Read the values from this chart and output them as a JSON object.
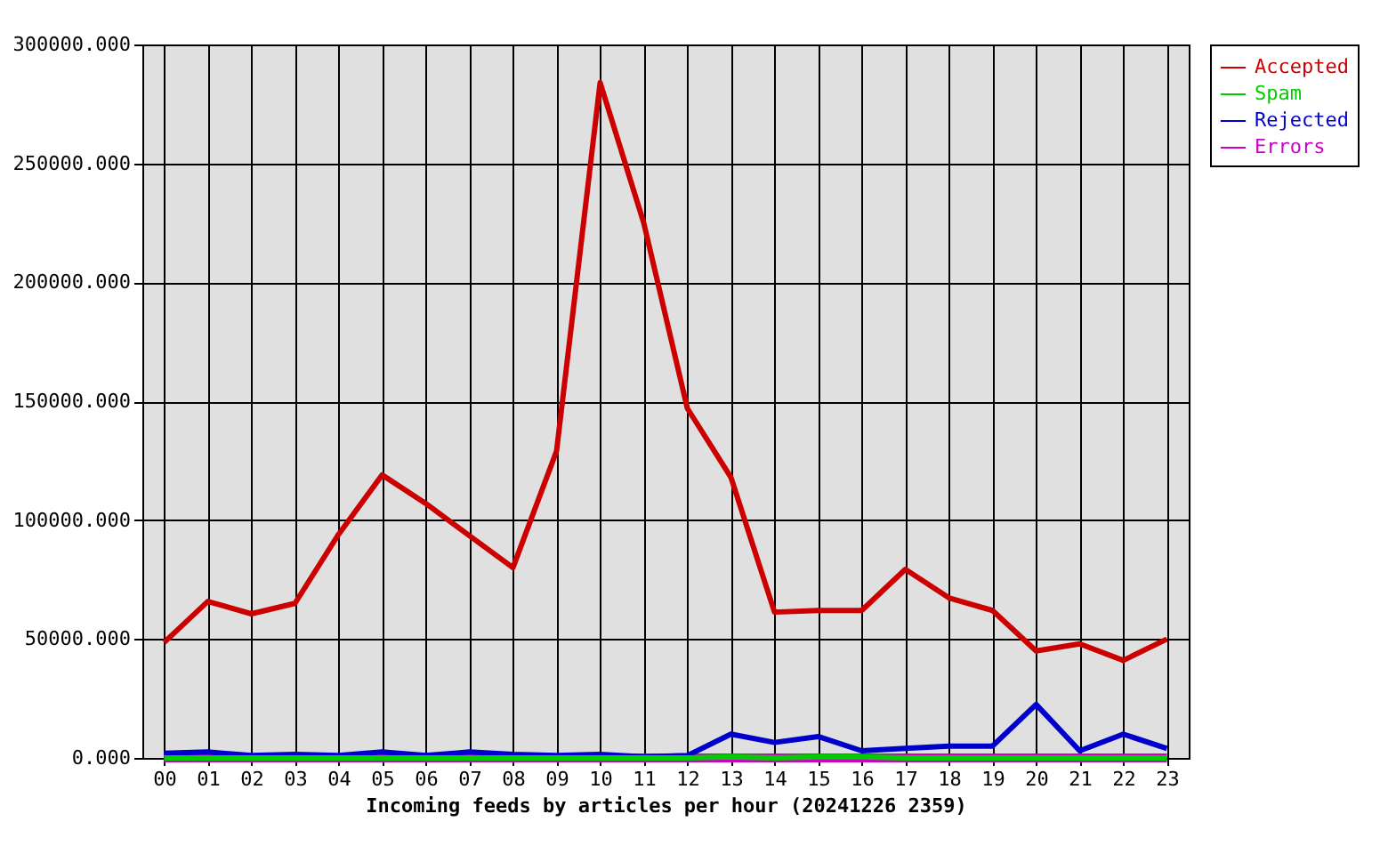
{
  "chart_data": {
    "type": "line",
    "xlabel": "Incoming feeds by articles per hour (20241226 2359)",
    "categories": [
      "00",
      "01",
      "02",
      "03",
      "04",
      "05",
      "06",
      "07",
      "08",
      "09",
      "10",
      "11",
      "12",
      "13",
      "14",
      "15",
      "16",
      "17",
      "18",
      "19",
      "20",
      "21",
      "22",
      "23"
    ],
    "series": [
      {
        "name": "Accepted",
        "color": "#cc0000",
        "values": [
          48600,
          65800,
          60600,
          65000,
          94000,
          119000,
          107000,
          93500,
          80000,
          129000,
          284000,
          225000,
          147000,
          118000,
          61300,
          62000,
          62000,
          79300,
          67300,
          62000,
          45000,
          48000,
          41000,
          50000
        ]
      },
      {
        "name": "Spam",
        "color": "#00cc00",
        "values": [
          0,
          0,
          0,
          0,
          0,
          0,
          0,
          0,
          0,
          0,
          0,
          0,
          0,
          500,
          0,
          500,
          500,
          0,
          0,
          0,
          0,
          0,
          0,
          0
        ]
      },
      {
        "name": "Rejected",
        "color": "#0000cc",
        "values": [
          2000,
          2500,
          1000,
          1500,
          1000,
          2500,
          1000,
          2500,
          1500,
          1000,
          1500,
          500,
          1000,
          10000,
          6500,
          9000,
          3000,
          4000,
          5000,
          5000,
          22500,
          3000,
          10000,
          4000
        ]
      },
      {
        "name": "Errors",
        "color": "#cc00cc",
        "values": [
          0,
          0,
          0,
          0,
          0,
          0,
          0,
          0,
          0,
          0,
          0,
          0,
          0,
          0,
          0,
          0,
          0,
          0,
          0,
          0,
          0,
          0,
          0,
          0
        ]
      }
    ],
    "ylim": [
      0,
      300000
    ],
    "yticks": [
      {
        "value": 0,
        "label": "0.000"
      },
      {
        "value": 50000,
        "label": "50000.000"
      },
      {
        "value": 100000,
        "label": "100000.000"
      },
      {
        "value": 150000,
        "label": "150000.000"
      },
      {
        "value": 200000,
        "label": "200000.000"
      },
      {
        "value": 250000,
        "label": "250000.000"
      },
      {
        "value": 300000,
        "label": "300000.000"
      }
    ],
    "grid": true,
    "legend": "top right",
    "line_style": "solid"
  }
}
